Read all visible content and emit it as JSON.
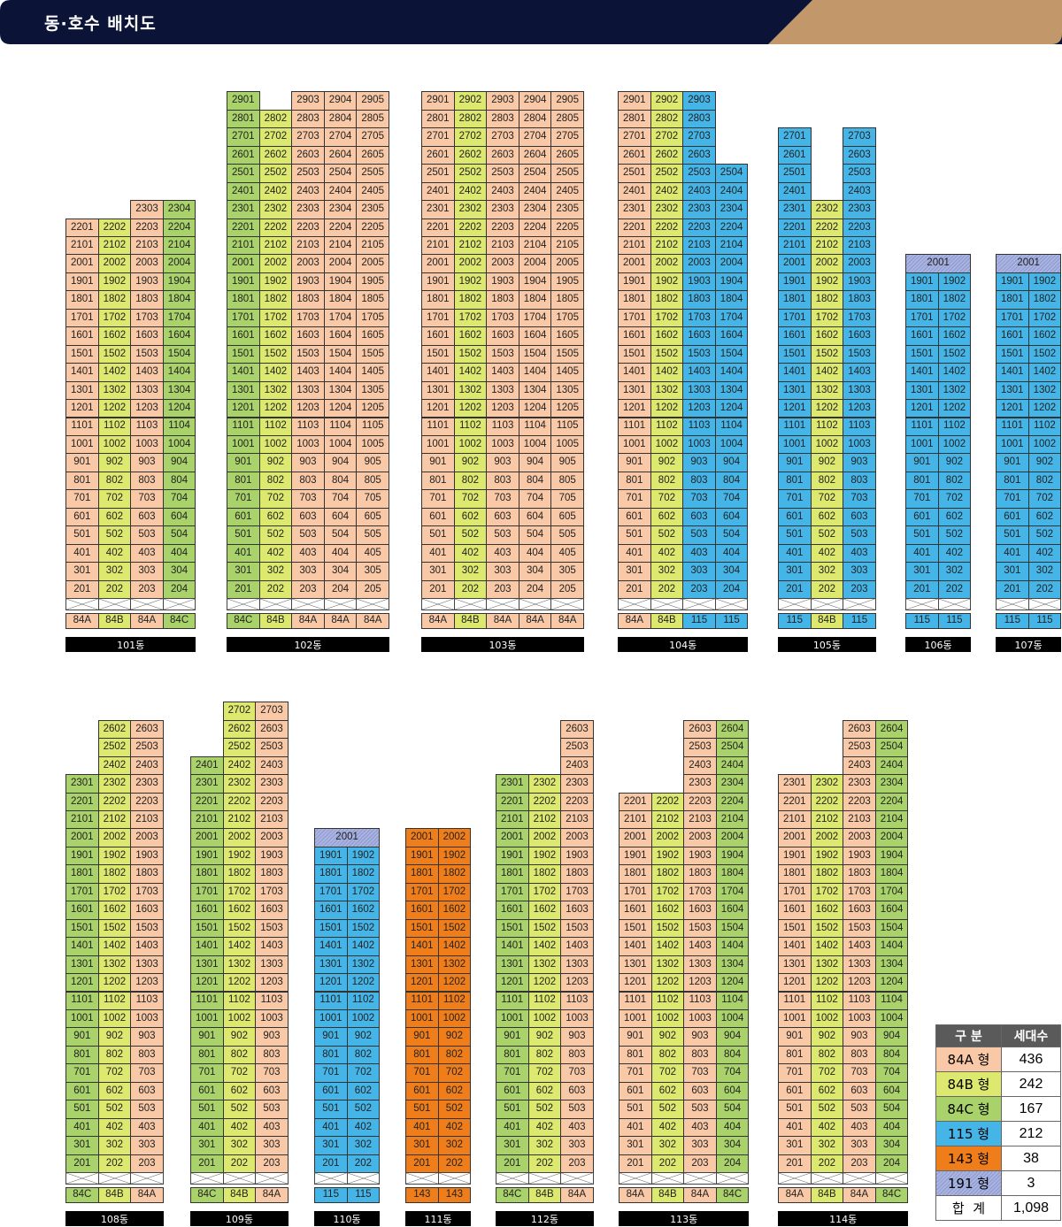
{
  "header": {
    "title": "동·호수 배치도"
  },
  "colors": {
    "84A": "#f9c8a6",
    "84B": "#dde86f",
    "84C": "#a9d26a",
    "115": "#45b5e8",
    "143": "#ef7d1a",
    "191": "#a9b4e0",
    "navy": "#0b1437",
    "gold": "#c29769"
  },
  "layouts": {
    "top": {
      "baseline": 676,
      "floorStart": 2,
      "hatchFloor": 2.5
    },
    "bottom": {
      "baseline": 1325,
      "floorStart": 2,
      "hatchFloor": 2.5
    }
  },
  "buildings": [
    {
      "id": "101",
      "label": "101동",
      "layout": "top",
      "columns": [
        {
          "num": 1,
          "type": "84A",
          "top": 22
        },
        {
          "num": 2,
          "type": "84B",
          "top": 22
        },
        {
          "num": 3,
          "type": "84A",
          "top": 23
        },
        {
          "num": 4,
          "type": "84C",
          "top": 23
        }
      ]
    },
    {
      "id": "102",
      "label": "102동",
      "layout": "top",
      "columns": [
        {
          "num": 1,
          "type": "84C",
          "top": 29
        },
        {
          "num": 2,
          "type": "84B",
          "top": 28
        },
        {
          "num": 3,
          "type": "84A",
          "top": 29
        },
        {
          "num": 4,
          "type": "84A",
          "top": 29
        },
        {
          "num": 5,
          "type": "84A",
          "top": 29
        }
      ]
    },
    {
      "id": "103",
      "label": "103동",
      "layout": "top",
      "columns": [
        {
          "num": 1,
          "type": "84A",
          "top": 29
        },
        {
          "num": 2,
          "type": "84B",
          "top": 29
        },
        {
          "num": 3,
          "type": "84A",
          "top": 29
        },
        {
          "num": 4,
          "type": "84A",
          "top": 29
        },
        {
          "num": 5,
          "type": "84A",
          "top": 29
        }
      ]
    },
    {
      "id": "104",
      "label": "104동",
      "layout": "top",
      "columns": [
        {
          "num": 1,
          "type": "84A",
          "top": 29
        },
        {
          "num": 2,
          "type": "84B",
          "top": 29
        },
        {
          "num": 3,
          "type": "115",
          "top": 29
        },
        {
          "num": 4,
          "type": "115",
          "top": 25
        }
      ]
    },
    {
      "id": "105",
      "label": "105동",
      "layout": "top",
      "columns": [
        {
          "num": 1,
          "type": "115",
          "top": 27
        },
        {
          "num": 2,
          "type": "84B",
          "top": 23
        },
        {
          "num": 3,
          "type": "115",
          "top": 27
        }
      ]
    },
    {
      "id": "106",
      "label": "106동",
      "layout": "top",
      "penthouse": "2001",
      "columns": [
        {
          "num": 1,
          "type": "115",
          "top": 19
        },
        {
          "num": 2,
          "type": "115",
          "top": 19
        }
      ]
    },
    {
      "id": "107",
      "label": "107동",
      "layout": "top",
      "penthouse": "2001",
      "columns": [
        {
          "num": 1,
          "type": "115",
          "top": 19
        },
        {
          "num": 2,
          "type": "115",
          "top": 19
        }
      ]
    },
    {
      "id": "108",
      "label": "108동",
      "layout": "bottom",
      "columns": [
        {
          "num": 1,
          "type": "84C",
          "top": 23
        },
        {
          "num": 2,
          "type": "84B",
          "top": 26
        },
        {
          "num": 3,
          "type": "84A",
          "top": 26
        }
      ]
    },
    {
      "id": "109",
      "label": "109동",
      "layout": "bottom",
      "columns": [
        {
          "num": 1,
          "type": "84C",
          "top": 24
        },
        {
          "num": 2,
          "type": "84B",
          "top": 27
        },
        {
          "num": 3,
          "type": "84A",
          "top": 27
        }
      ]
    },
    {
      "id": "110",
      "label": "110동",
      "layout": "bottom",
      "penthouse": "2001",
      "columns": [
        {
          "num": 1,
          "type": "115",
          "top": 19
        },
        {
          "num": 2,
          "type": "115",
          "top": 19
        }
      ]
    },
    {
      "id": "111",
      "label": "111동",
      "layout": "bottom",
      "columns": [
        {
          "num": 1,
          "type": "143",
          "top": 20
        },
        {
          "num": 2,
          "type": "143",
          "top": 20
        }
      ]
    },
    {
      "id": "112",
      "label": "112동",
      "layout": "bottom",
      "columns": [
        {
          "num": 1,
          "type": "84C",
          "top": 23
        },
        {
          "num": 2,
          "type": "84B",
          "top": 23
        },
        {
          "num": 3,
          "type": "84A",
          "top": 26
        }
      ]
    },
    {
      "id": "113",
      "label": "113동",
      "layout": "bottom",
      "columns": [
        {
          "num": 1,
          "type": "84A",
          "top": 22
        },
        {
          "num": 2,
          "type": "84B",
          "top": 22
        },
        {
          "num": 3,
          "type": "84A",
          "top": 26
        },
        {
          "num": 4,
          "type": "84C",
          "top": 26
        }
      ]
    },
    {
      "id": "114",
      "label": "114동",
      "layout": "bottom",
      "columns": [
        {
          "num": 1,
          "type": "84A",
          "top": 23
        },
        {
          "num": 2,
          "type": "84B",
          "top": 23
        },
        {
          "num": 3,
          "type": "84A",
          "top": 26
        },
        {
          "num": 4,
          "type": "84C",
          "top": 26
        }
      ]
    }
  ],
  "legend": {
    "header_type": "구 분",
    "header_count": "세대수",
    "rows": [
      {
        "key": "84A",
        "label": "84A 형",
        "count": "436"
      },
      {
        "key": "84B",
        "label": "84B 형",
        "count": "242"
      },
      {
        "key": "84C",
        "label": "84C 형",
        "count": "167"
      },
      {
        "key": "115",
        "label": "115 형",
        "count": "212"
      },
      {
        "key": "143",
        "label": "143 형",
        "count": "38"
      },
      {
        "key": "191",
        "label": "191 형",
        "count": "3"
      }
    ],
    "total_label": "합  계",
    "total_count": "1,098"
  }
}
